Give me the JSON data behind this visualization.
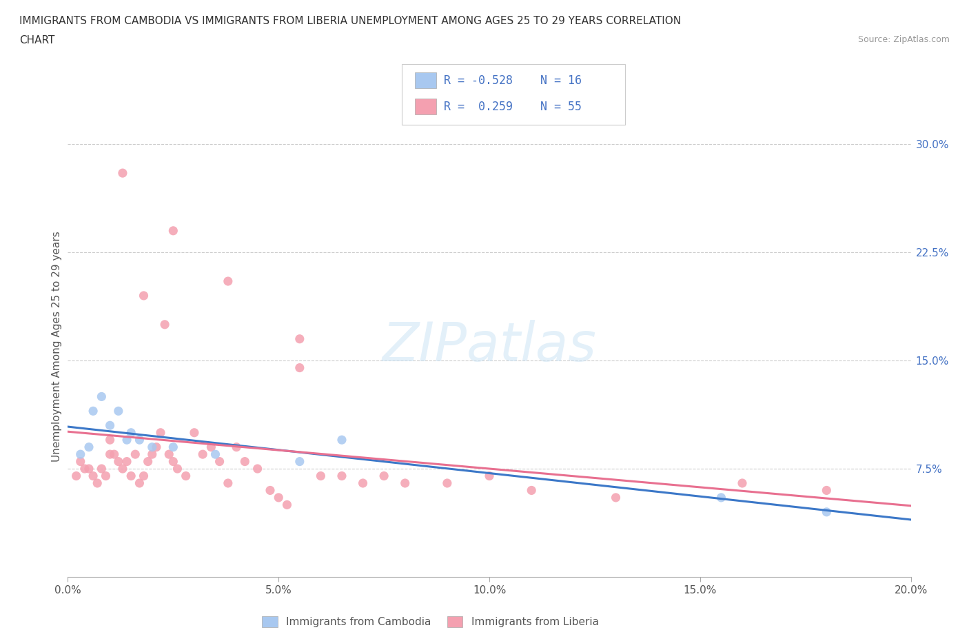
{
  "title_line1": "IMMIGRANTS FROM CAMBODIA VS IMMIGRANTS FROM LIBERIA UNEMPLOYMENT AMONG AGES 25 TO 29 YEARS CORRELATION",
  "title_line2": "CHART",
  "source_text": "Source: ZipAtlas.com",
  "ylabel": "Unemployment Among Ages 25 to 29 years",
  "xlabel_ticks": [
    "0.0%",
    "5.0%",
    "10.0%",
    "15.0%",
    "20.0%"
  ],
  "xlabel_vals": [
    0.0,
    5.0,
    10.0,
    15.0,
    20.0
  ],
  "ylabel_ticks": [
    "7.5%",
    "15.0%",
    "22.5%",
    "30.0%"
  ],
  "ylabel_vals": [
    7.5,
    15.0,
    22.5,
    30.0
  ],
  "xlim": [
    0.0,
    20.0
  ],
  "ylim": [
    0.0,
    32.0
  ],
  "cambodia_color": "#a8c8f0",
  "liberia_color": "#f4a0b0",
  "cambodia_line_color": "#3c78c8",
  "liberia_line_color": "#e87090",
  "R_cambodia": -0.528,
  "N_cambodia": 16,
  "R_liberia": 0.259,
  "N_liberia": 55,
  "legend_label_cambodia": "Immigrants from Cambodia",
  "legend_label_liberia": "Immigrants from Liberia",
  "watermark": "ZIPatlas",
  "cambodia_x": [
    0.3,
    0.5,
    0.6,
    0.8,
    1.0,
    1.2,
    1.4,
    1.5,
    1.7,
    2.0,
    2.5,
    3.5,
    5.5,
    6.5,
    15.5,
    18.0
  ],
  "cambodia_y": [
    8.5,
    9.0,
    11.5,
    12.5,
    10.5,
    11.5,
    9.5,
    10.0,
    9.5,
    9.0,
    9.0,
    8.5,
    8.0,
    9.5,
    5.5,
    4.5
  ],
  "liberia_x": [
    0.2,
    0.3,
    0.4,
    0.5,
    0.6,
    0.7,
    0.8,
    0.9,
    1.0,
    1.0,
    1.1,
    1.2,
    1.3,
    1.3,
    1.4,
    1.5,
    1.6,
    1.7,
    1.8,
    1.9,
    2.0,
    2.1,
    2.2,
    2.3,
    2.4,
    2.5,
    2.6,
    2.8,
    3.0,
    3.2,
    3.4,
    3.6,
    3.8,
    4.0,
    4.2,
    4.5,
    4.8,
    5.0,
    5.2,
    5.5,
    6.0,
    6.5,
    7.0,
    7.5,
    8.0,
    9.0,
    10.0,
    11.0,
    13.0,
    16.0,
    18.0,
    1.8,
    2.5,
    3.8,
    5.5
  ],
  "liberia_y": [
    7.0,
    8.0,
    7.5,
    7.5,
    7.0,
    6.5,
    7.5,
    7.0,
    8.5,
    9.5,
    8.5,
    8.0,
    7.5,
    28.0,
    8.0,
    7.0,
    8.5,
    6.5,
    7.0,
    8.0,
    8.5,
    9.0,
    10.0,
    17.5,
    8.5,
    8.0,
    7.5,
    7.0,
    10.0,
    8.5,
    9.0,
    8.0,
    6.5,
    9.0,
    8.0,
    7.5,
    6.0,
    5.5,
    5.0,
    14.5,
    7.0,
    7.0,
    6.5,
    7.0,
    6.5,
    6.5,
    7.0,
    6.0,
    5.5,
    6.5,
    6.0,
    19.5,
    24.0,
    20.5,
    16.5
  ]
}
